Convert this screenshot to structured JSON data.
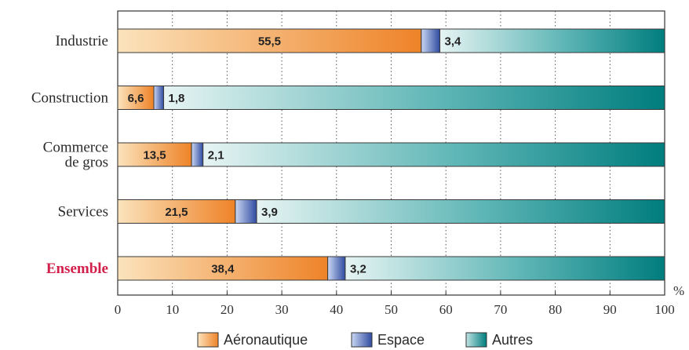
{
  "chart_data": {
    "type": "bar",
    "orientation": "horizontal",
    "stacked": true,
    "categories": [
      "Industrie",
      "Construction",
      "Commerce\nde gros",
      "Services",
      "Ensemble"
    ],
    "highlighted_category": "Ensemble",
    "series": [
      {
        "name": "Aéronautique",
        "values": [
          55.5,
          6.6,
          13.5,
          21.5,
          38.4
        ],
        "value_labels": [
          "55,5",
          "6,6",
          "13,5",
          "21,5",
          "38,4"
        ],
        "color": "#ef8a2e"
      },
      {
        "name": "Espace",
        "values": [
          3.4,
          1.8,
          2.1,
          3.9,
          3.2
        ],
        "value_labels": [
          "3,4",
          "1,8",
          "2,1",
          "3,9",
          "3,2"
        ],
        "color": "#3552a8"
      },
      {
        "name": "Autres",
        "values": [
          41.1,
          91.6,
          84.4,
          74.6,
          58.4
        ],
        "color": "#0a8a8a"
      }
    ],
    "xlim": [
      0,
      100
    ],
    "xticks": [
      0,
      10,
      20,
      30,
      40,
      50,
      60,
      70,
      80,
      90,
      100
    ],
    "xunit": "%",
    "grid": "vertical-dotted",
    "legend_position": "bottom"
  }
}
